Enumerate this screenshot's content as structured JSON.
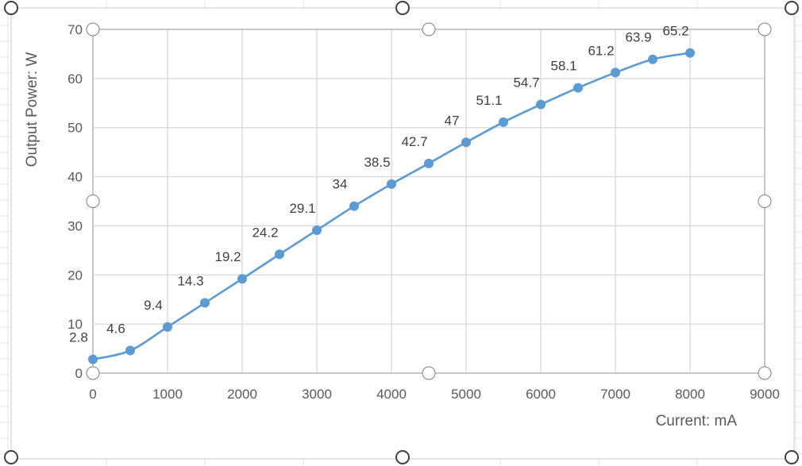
{
  "chart_data": {
    "type": "line",
    "title": "",
    "xlabel": "Current:  mA",
    "ylabel": "Output  Power:  W",
    "xlim": [
      0,
      9000
    ],
    "ylim": [
      0,
      70
    ],
    "xticks": [
      "0",
      "1000",
      "2000",
      "3000",
      "4000",
      "5000",
      "6000",
      "7000",
      "8000",
      "9000"
    ],
    "yticks": [
      "0",
      "10",
      "20",
      "30",
      "40",
      "50",
      "60",
      "70"
    ],
    "grid": true,
    "legend": "none",
    "smooth": true,
    "series": [
      {
        "color": "#5b9bd5",
        "points": [
          {
            "x": 0,
            "y": 2.8,
            "label": "2.8"
          },
          {
            "x": 500,
            "y": 4.6,
            "label": "4.6"
          },
          {
            "x": 1000,
            "y": 9.4,
            "label": "9.4"
          },
          {
            "x": 1500,
            "y": 14.3,
            "label": "14.3"
          },
          {
            "x": 2000,
            "y": 19.2,
            "label": "19.2"
          },
          {
            "x": 2500,
            "y": 24.2,
            "label": "24.2"
          },
          {
            "x": 3000,
            "y": 29.1,
            "label": "29.1"
          },
          {
            "x": 3500,
            "y": 34,
            "label": "34"
          },
          {
            "x": 4000,
            "y": 38.5,
            "label": "38.5"
          },
          {
            "x": 4500,
            "y": 42.7,
            "label": "42.7"
          },
          {
            "x": 5000,
            "y": 47,
            "label": "47"
          },
          {
            "x": 5500,
            "y": 51.1,
            "label": "51.1"
          },
          {
            "x": 6000,
            "y": 54.7,
            "label": "54.7"
          },
          {
            "x": 6500,
            "y": 58.1,
            "label": "58.1"
          },
          {
            "x": 7000,
            "y": 61.2,
            "label": "61.2"
          },
          {
            "x": 7500,
            "y": 63.9,
            "label": "63.9"
          },
          {
            "x": 8000,
            "y": 65.2,
            "label": "65.2"
          }
        ]
      }
    ]
  }
}
